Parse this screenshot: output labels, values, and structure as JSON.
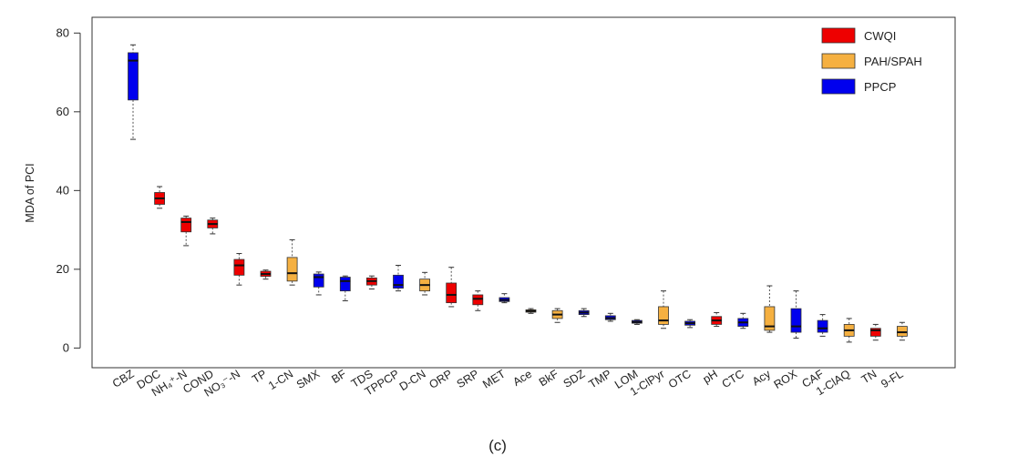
{
  "chart_data": {
    "type": "boxplot",
    "ylabel": "MDA of PCI",
    "panel_label": "(c)",
    "ylim": [
      -5,
      84
    ],
    "yticks": [
      0,
      20,
      40,
      60,
      80
    ],
    "colors": {
      "CWQI": "#ee0000",
      "PAH/SPAH": "#f5b041",
      "PPCP": "#0000ee"
    },
    "legend": {
      "position": "top-right",
      "entries": [
        "CWQI",
        "PAH/SPAH",
        "PPCP"
      ]
    },
    "categories": [
      {
        "label": "CBZ",
        "group": "PPCP",
        "min": 53,
        "q1": 63,
        "median": 73,
        "q3": 75,
        "max": 77
      },
      {
        "label": "DOC",
        "group": "CWQI",
        "min": 35.5,
        "q1": 36.5,
        "median": 38,
        "q3": 39.5,
        "max": 41
      },
      {
        "label": "NH₄⁺-N",
        "group": "CWQI",
        "min": 26,
        "q1": 29.5,
        "median": 32,
        "q3": 33,
        "max": 33.5
      },
      {
        "label": "COND",
        "group": "CWQI",
        "min": 29,
        "q1": 30.5,
        "median": 31.5,
        "q3": 32.5,
        "max": 33
      },
      {
        "label": "NO₃⁻-N",
        "group": "CWQI",
        "min": 16,
        "q1": 18.5,
        "median": 21,
        "q3": 22.5,
        "max": 24
      },
      {
        "label": "TP",
        "group": "CWQI",
        "min": 17.5,
        "q1": 18.2,
        "median": 18.8,
        "q3": 19.5,
        "max": 19.8
      },
      {
        "label": "1-CN",
        "group": "PAH/SPAH",
        "min": 16,
        "q1": 17,
        "median": 19,
        "q3": 23,
        "max": 27.5
      },
      {
        "label": "SMX",
        "group": "PPCP",
        "min": 13.5,
        "q1": 15.5,
        "median": 18,
        "q3": 18.8,
        "max": 19.3
      },
      {
        "label": "BF",
        "group": "PPCP",
        "min": 12,
        "q1": 14.5,
        "median": 17,
        "q3": 18,
        "max": 18.3
      },
      {
        "label": "TDS",
        "group": "CWQI",
        "min": 15,
        "q1": 16,
        "median": 17,
        "q3": 17.8,
        "max": 18.3
      },
      {
        "label": "TPPCP",
        "group": "PPCP",
        "min": 14.5,
        "q1": 15.2,
        "median": 16,
        "q3": 18.5,
        "max": 21
      },
      {
        "label": "D-CN",
        "group": "PAH/SPAH",
        "min": 13.5,
        "q1": 14.5,
        "median": 16,
        "q3": 17.5,
        "max": 19.2
      },
      {
        "label": "ORP",
        "group": "CWQI",
        "min": 10.5,
        "q1": 11.5,
        "median": 13.5,
        "q3": 16.5,
        "max": 20.5
      },
      {
        "label": "SRP",
        "group": "CWQI",
        "min": 9.5,
        "q1": 11,
        "median": 12.5,
        "q3": 13.5,
        "max": 14.5
      },
      {
        "label": "MET",
        "group": "PPCP",
        "min": 11.5,
        "q1": 11.8,
        "median": 12.2,
        "q3": 12.8,
        "max": 13.8
      },
      {
        "label": "Ace",
        "group": "PAH/SPAH",
        "min": 8.8,
        "q1": 9.1,
        "median": 9.4,
        "q3": 9.7,
        "max": 10
      },
      {
        "label": "BkF",
        "group": "PAH/SPAH",
        "min": 6.5,
        "q1": 7.5,
        "median": 8.5,
        "q3": 9.5,
        "max": 10
      },
      {
        "label": "SDZ",
        "group": "PPCP",
        "min": 8,
        "q1": 8.5,
        "median": 9,
        "q3": 9.5,
        "max": 10
      },
      {
        "label": "TMP",
        "group": "PPCP",
        "min": 6.8,
        "q1": 7.2,
        "median": 7.6,
        "q3": 8.2,
        "max": 8.8
      },
      {
        "label": "LOM",
        "group": "PPCP",
        "min": 6,
        "q1": 6.3,
        "median": 6.6,
        "q3": 7,
        "max": 7.2
      },
      {
        "label": "1-ClPyr",
        "group": "PAH/SPAH",
        "min": 5,
        "q1": 6,
        "median": 7,
        "q3": 10.5,
        "max": 14.5
      },
      {
        "label": "OTC",
        "group": "PPCP",
        "min": 5.2,
        "q1": 5.8,
        "median": 6.3,
        "q3": 6.8,
        "max": 7.2
      },
      {
        "label": "pH",
        "group": "CWQI",
        "min": 5.5,
        "q1": 6,
        "median": 7,
        "q3": 8,
        "max": 9
      },
      {
        "label": "CTC",
        "group": "PPCP",
        "min": 5,
        "q1": 5.5,
        "median": 6.5,
        "q3": 7.5,
        "max": 8.8
      },
      {
        "label": "Acy",
        "group": "PAH/SPAH",
        "min": 4,
        "q1": 4.5,
        "median": 5.5,
        "q3": 10.5,
        "max": 15.8
      },
      {
        "label": "ROX",
        "group": "PPCP",
        "min": 2.5,
        "q1": 4,
        "median": 5.5,
        "q3": 10,
        "max": 14.5
      },
      {
        "label": "CAF",
        "group": "PPCP",
        "min": 3,
        "q1": 4,
        "median": 5,
        "q3": 7,
        "max": 8.5
      },
      {
        "label": "1-ClAQ",
        "group": "PAH/SPAH",
        "min": 1.5,
        "q1": 3,
        "median": 4.5,
        "q3": 6,
        "max": 7.5
      },
      {
        "label": "TN",
        "group": "CWQI",
        "min": 2,
        "q1": 3,
        "median": 4.5,
        "q3": 5,
        "max": 6
      },
      {
        "label": "9-FL",
        "group": "PAH/SPAH",
        "min": 2,
        "q1": 3,
        "median": 4,
        "q3": 5.5,
        "max": 6.5
      }
    ]
  }
}
